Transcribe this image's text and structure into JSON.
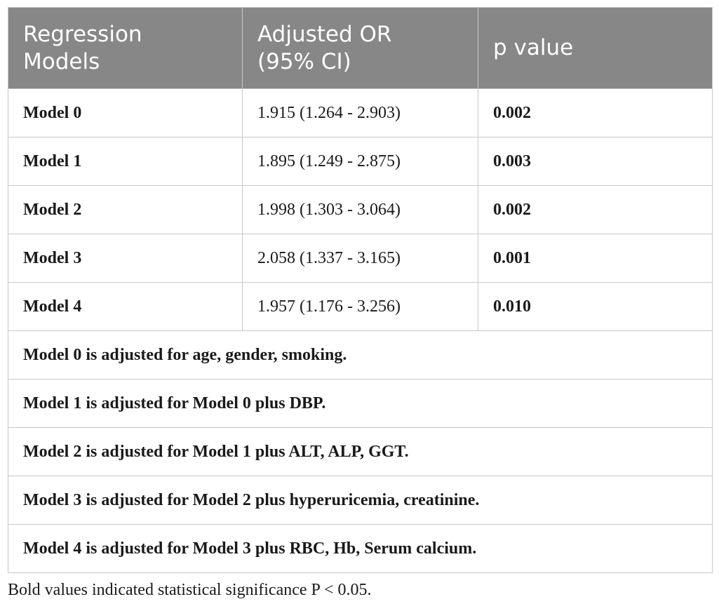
{
  "table": {
    "headers": [
      "Regression Models",
      "Adjusted OR (95% CI)",
      "p value"
    ],
    "header_line1": [
      "Regression",
      "Adjusted OR",
      "p value"
    ],
    "header_line2": [
      "Models",
      "(95% CI)",
      ""
    ],
    "rows": [
      {
        "model": "Model 0",
        "or_ci": "1.915 (1.264 - 2.903)",
        "p": "0.002"
      },
      {
        "model": "Model 1",
        "or_ci": "1.895 (1.249 - 2.875)",
        "p": "0.003"
      },
      {
        "model": "Model 2",
        "or_ci": "1.998 (1.303 - 3.064)",
        "p": "0.002"
      },
      {
        "model": "Model 3",
        "or_ci": "2.058 (1.337 - 3.165)",
        "p": "0.001"
      },
      {
        "model": "Model 4",
        "or_ci": "1.957 (1.176 - 3.256)",
        "p": "0.010"
      }
    ],
    "notes": [
      "Model 0 is adjusted for age, gender, smoking.",
      "Model 1 is adjusted for Model 0 plus DBP.",
      "Model 2 is adjusted for Model 1 plus ALT, ALP, GGT.",
      "Model 3 is adjusted for Model 2 plus hyperuricemia, creatinine.",
      "Model 4 is adjusted for Model 3 plus RBC, Hb, Serum calcium."
    ]
  },
  "footnote": "Bold values indicated statistical significance P < 0.05.",
  "colors": {
    "header_bg": "#878787",
    "header_text": "#ffffff",
    "border": "#c8c8c8"
  }
}
